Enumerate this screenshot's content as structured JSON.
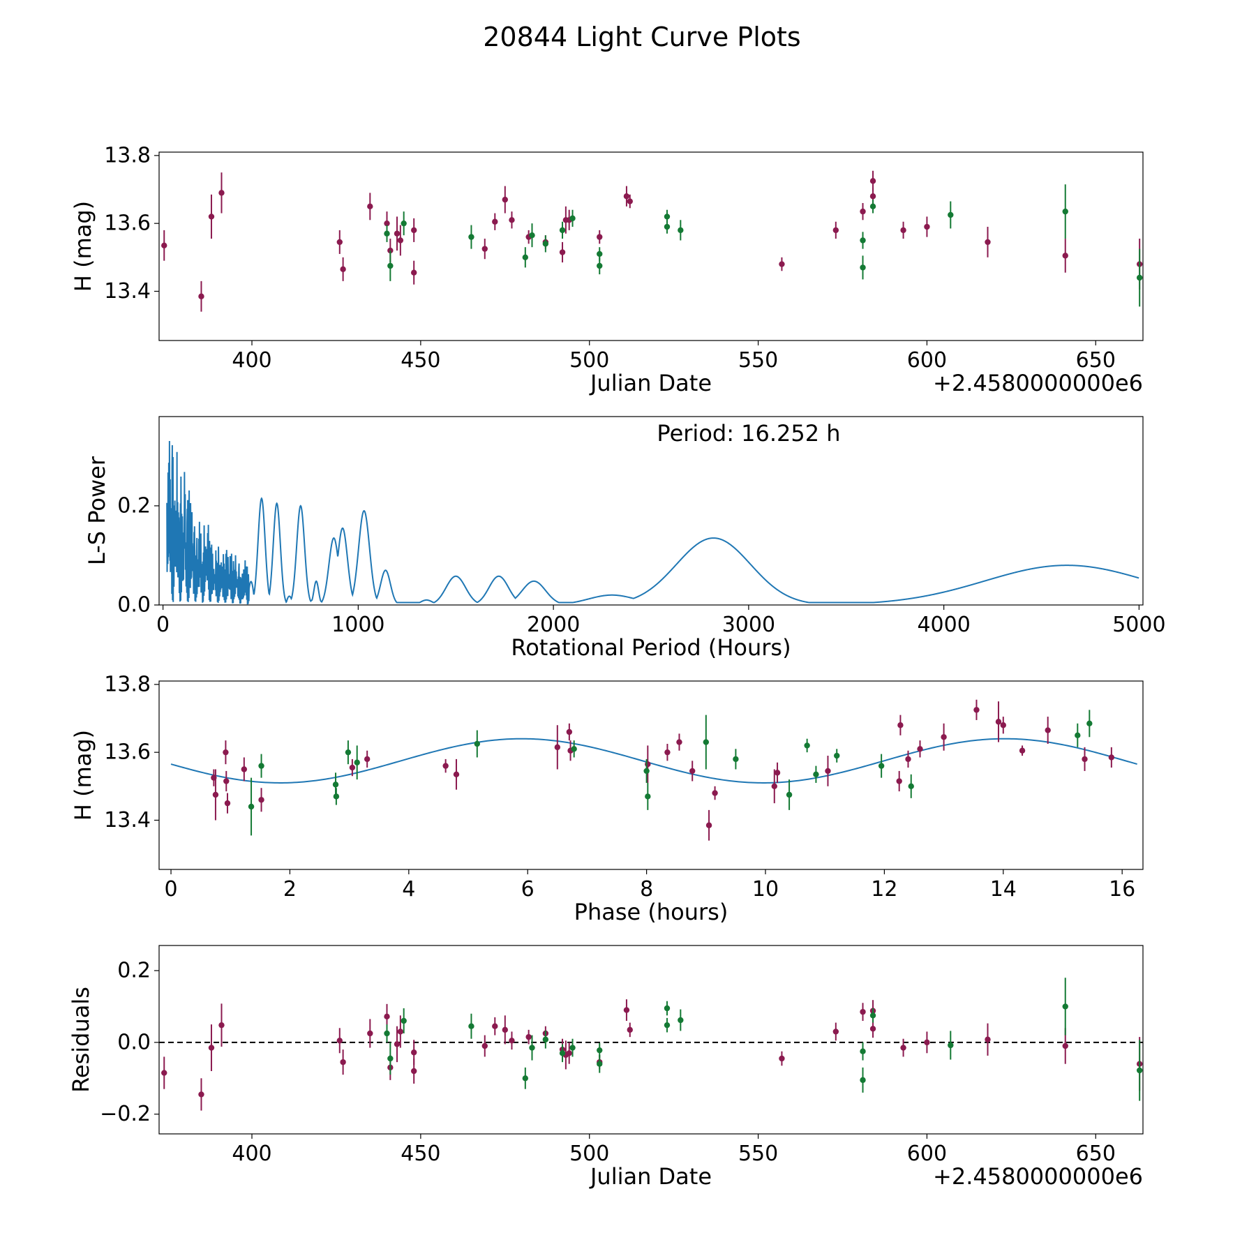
{
  "title": "20844 Light Curve Plots",
  "colors": {
    "red": "#8b1a4f",
    "green": "#147a34",
    "line": "#1f77b4",
    "ref": "#000000"
  },
  "chart_data": [
    {
      "id": "raw",
      "type": "scatter",
      "xlabel": "Julian Date",
      "ylabel": "H (mag)",
      "offset_label": "+2.4580000000e6",
      "xlim": [
        372.5,
        664.0
      ],
      "ylim": [
        13.255,
        13.81
      ],
      "xticks": [
        400,
        450,
        500,
        550,
        600,
        650
      ],
      "yticks": [
        13.4,
        13.6,
        13.8
      ],
      "ytick_decimals": 1,
      "series": [
        {
          "name": "red",
          "color": "#8b1a4f",
          "points": [
            [
              374.0,
              13.535,
              0.09
            ],
            [
              385.0,
              13.385,
              0.09
            ],
            [
              388.0,
              13.62,
              0.13
            ],
            [
              391.0,
              13.69,
              0.12
            ],
            [
              426.0,
              13.545,
              0.07
            ],
            [
              427.0,
              13.465,
              0.07
            ],
            [
              435.0,
              13.65,
              0.08
            ],
            [
              440.0,
              13.6,
              0.07
            ],
            [
              441.0,
              13.52,
              0.07
            ],
            [
              443.0,
              13.57,
              0.1
            ],
            [
              444.0,
              13.55,
              0.09
            ],
            [
              448.0,
              13.58,
              0.07
            ],
            [
              448.0,
              13.455,
              0.07
            ],
            [
              469.0,
              13.525,
              0.06
            ],
            [
              472.0,
              13.605,
              0.05
            ],
            [
              475.0,
              13.67,
              0.08
            ],
            [
              477.0,
              13.61,
              0.05
            ],
            [
              482.0,
              13.56,
              0.04
            ],
            [
              487.0,
              13.545,
              0.04
            ],
            [
              492.0,
              13.515,
              0.06
            ],
            [
              493.0,
              13.61,
              0.08
            ],
            [
              494.0,
              13.61,
              0.06
            ],
            [
              503.0,
              13.56,
              0.04
            ],
            [
              511.0,
              13.68,
              0.06
            ],
            [
              512.0,
              13.665,
              0.04
            ],
            [
              557.0,
              13.48,
              0.04
            ],
            [
              573.0,
              13.58,
              0.05
            ],
            [
              581.0,
              13.635,
              0.05
            ],
            [
              584.0,
              13.725,
              0.06
            ],
            [
              584.0,
              13.68,
              0.05
            ],
            [
              593.0,
              13.58,
              0.05
            ],
            [
              600.0,
              13.59,
              0.06
            ],
            [
              618.0,
              13.545,
              0.09
            ],
            [
              641.0,
              13.505,
              0.1
            ],
            [
              663.0,
              13.48,
              0.15
            ]
          ]
        },
        {
          "name": "green",
          "color": "#147a34",
          "points": [
            [
              440.0,
              13.57,
              0.05
            ],
            [
              441.0,
              13.475,
              0.09
            ],
            [
              445.0,
              13.6,
              0.07
            ],
            [
              465.0,
              13.56,
              0.07
            ],
            [
              481.0,
              13.5,
              0.06
            ],
            [
              483.0,
              13.565,
              0.07
            ],
            [
              487.0,
              13.54,
              0.05
            ],
            [
              492.0,
              13.58,
              0.05
            ],
            [
              495.0,
              13.615,
              0.05
            ],
            [
              503.0,
              13.51,
              0.04
            ],
            [
              503.0,
              13.475,
              0.05
            ],
            [
              523.0,
              13.62,
              0.04
            ],
            [
              523.0,
              13.59,
              0.04
            ],
            [
              527.0,
              13.58,
              0.06
            ],
            [
              581.0,
              13.55,
              0.05
            ],
            [
              581.0,
              13.47,
              0.07
            ],
            [
              584.0,
              13.65,
              0.04
            ],
            [
              607.0,
              13.625,
              0.08
            ],
            [
              641.0,
              13.635,
              0.16
            ],
            [
              663.0,
              13.44,
              0.17
            ]
          ]
        }
      ]
    },
    {
      "id": "periodogram",
      "type": "line",
      "xlabel": "Rotational Period (Hours)",
      "ylabel": "L-S Power",
      "annotation": "Period: 16.252 h",
      "xlim": [
        -20,
        5020
      ],
      "ylim": [
        0.0,
        0.38
      ],
      "xticks": [
        0,
        1000,
        2000,
        3000,
        4000,
        5000
      ],
      "yticks": [
        0.0,
        0.2
      ],
      "ytick_decimals": 1,
      "peaks": [
        [
          505,
          0.215,
          18
        ],
        [
          583,
          0.205,
          18
        ],
        [
          705,
          0.2,
          20
        ],
        [
          785,
          0.048,
          12
        ],
        [
          875,
          0.135,
          25
        ],
        [
          920,
          0.155,
          25
        ],
        [
          1030,
          0.19,
          28
        ],
        [
          1140,
          0.07,
          25
        ],
        [
          1350,
          0.01,
          30
        ],
        [
          1500,
          0.058,
          50
        ],
        [
          1720,
          0.058,
          50
        ],
        [
          1900,
          0.048,
          60
        ],
        [
          2300,
          0.02,
          120
        ],
        [
          2820,
          0.135,
          190
        ],
        [
          4630,
          0.08,
          420
        ]
      ],
      "noise_region": [
        20,
        440
      ],
      "baseline": 0.005
    },
    {
      "id": "phase",
      "type": "scatter",
      "xlabel": "Phase (hours)",
      "ylabel": "H (mag)",
      "xlim": [
        -0.2,
        16.35
      ],
      "ylim": [
        13.255,
        13.81
      ],
      "xticks": [
        0,
        2,
        4,
        6,
        8,
        10,
        12,
        14,
        16
      ],
      "yticks": [
        13.4,
        13.6,
        13.8
      ],
      "ytick_decimals": 1,
      "fit": {
        "mean": 13.575,
        "amplitude": 0.065,
        "period": 8.126,
        "phase_peak": 5.9
      },
      "series": [
        {
          "name": "red",
          "color": "#8b1a4f",
          "points": [
            [
              0.72,
              13.525,
              0.05
            ],
            [
              0.75,
              13.475,
              0.15
            ],
            [
              0.92,
              13.6,
              0.07
            ],
            [
              0.93,
              13.515,
              0.06
            ],
            [
              0.95,
              13.45,
              0.06
            ],
            [
              1.23,
              13.55,
              0.07
            ],
            [
              1.52,
              13.46,
              0.07
            ],
            [
              3.05,
              13.555,
              0.05
            ],
            [
              3.3,
              13.58,
              0.05
            ],
            [
              4.62,
              13.56,
              0.04
            ],
            [
              4.8,
              13.535,
              0.09
            ],
            [
              6.5,
              13.615,
              0.13
            ],
            [
              6.7,
              13.66,
              0.05
            ],
            [
              6.72,
              13.605,
              0.06
            ],
            [
              8.02,
              13.565,
              0.11
            ],
            [
              8.35,
              13.6,
              0.05
            ],
            [
              8.55,
              13.63,
              0.05
            ],
            [
              8.77,
              13.545,
              0.06
            ],
            [
              9.05,
              13.385,
              0.09
            ],
            [
              9.15,
              13.48,
              0.04
            ],
            [
              10.15,
              13.5,
              0.1
            ],
            [
              10.2,
              13.54,
              0.06
            ],
            [
              11.05,
              13.545,
              0.09
            ],
            [
              12.25,
              13.515,
              0.06
            ],
            [
              12.27,
              13.68,
              0.06
            ],
            [
              12.4,
              13.58,
              0.05
            ],
            [
              12.6,
              13.61,
              0.05
            ],
            [
              13.0,
              13.645,
              0.08
            ],
            [
              13.55,
              13.725,
              0.06
            ],
            [
              13.92,
              13.69,
              0.12
            ],
            [
              14.0,
              13.68,
              0.05
            ],
            [
              14.32,
              13.605,
              0.03
            ],
            [
              14.75,
              13.665,
              0.08
            ],
            [
              15.37,
              13.58,
              0.07
            ],
            [
              15.82,
              13.585,
              0.06
            ]
          ]
        },
        {
          "name": "green",
          "color": "#147a34",
          "points": [
            [
              1.35,
              13.44,
              0.17
            ],
            [
              1.52,
              13.56,
              0.07
            ],
            [
              2.77,
              13.505,
              0.07
            ],
            [
              2.78,
              13.47,
              0.05
            ],
            [
              2.98,
              13.6,
              0.07
            ],
            [
              3.13,
              13.57,
              0.1
            ],
            [
              5.15,
              13.625,
              0.08
            ],
            [
              6.78,
              13.61,
              0.05
            ],
            [
              8.0,
              13.545,
              0.07
            ],
            [
              8.02,
              13.47,
              0.08
            ],
            [
              9.0,
              13.63,
              0.16
            ],
            [
              9.5,
              13.58,
              0.06
            ],
            [
              10.4,
              13.475,
              0.09
            ],
            [
              10.7,
              13.62,
              0.04
            ],
            [
              10.85,
              13.535,
              0.05
            ],
            [
              11.2,
              13.59,
              0.04
            ],
            [
              11.95,
              13.56,
              0.07
            ],
            [
              12.45,
              13.5,
              0.07
            ],
            [
              15.25,
              13.65,
              0.07
            ],
            [
              15.45,
              13.685,
              0.08
            ]
          ]
        }
      ]
    },
    {
      "id": "residuals",
      "type": "scatter",
      "xlabel": "Julian Date",
      "ylabel": "Residuals",
      "offset_label": "+2.4580000000e6",
      "xlim": [
        372.5,
        664.0
      ],
      "ylim": [
        -0.255,
        0.27
      ],
      "xticks": [
        400,
        450,
        500,
        550,
        600,
        650
      ],
      "yticks": [
        -0.2,
        0.0,
        0.2
      ],
      "ytick_decimals": 1,
      "reference_line": 0.0,
      "series": [
        {
          "name": "red",
          "color": "#8b1a4f",
          "points": [
            [
              374.0,
              -0.085,
              0.09
            ],
            [
              385.0,
              -0.145,
              0.09
            ],
            [
              388.0,
              -0.015,
              0.13
            ],
            [
              391.0,
              0.048,
              0.12
            ],
            [
              426.0,
              0.005,
              0.07
            ],
            [
              427.0,
              -0.055,
              0.07
            ],
            [
              435.0,
              0.025,
              0.08
            ],
            [
              440.0,
              0.072,
              0.07
            ],
            [
              441.0,
              -0.07,
              0.07
            ],
            [
              443.0,
              -0.005,
              0.1
            ],
            [
              444.0,
              0.03,
              0.09
            ],
            [
              448.0,
              -0.028,
              0.07
            ],
            [
              448.0,
              -0.08,
              0.07
            ],
            [
              469.0,
              -0.01,
              0.06
            ],
            [
              472.0,
              0.045,
              0.05
            ],
            [
              475.0,
              0.035,
              0.08
            ],
            [
              477.0,
              0.005,
              0.05
            ],
            [
              482.0,
              0.015,
              0.04
            ],
            [
              487.0,
              0.025,
              0.04
            ],
            [
              492.0,
              -0.02,
              0.06
            ],
            [
              493.0,
              -0.035,
              0.08
            ],
            [
              494.0,
              -0.03,
              0.06
            ],
            [
              503.0,
              -0.055,
              0.04
            ],
            [
              511.0,
              0.09,
              0.06
            ],
            [
              512.0,
              0.035,
              0.04
            ],
            [
              557.0,
              -0.045,
              0.04
            ],
            [
              573.0,
              0.03,
              0.05
            ],
            [
              581.0,
              0.085,
              0.05
            ],
            [
              584.0,
              0.088,
              0.06
            ],
            [
              584.0,
              0.038,
              0.05
            ],
            [
              593.0,
              -0.015,
              0.05
            ],
            [
              600.0,
              0.0,
              0.06
            ],
            [
              618.0,
              0.008,
              0.09
            ],
            [
              641.0,
              -0.01,
              0.1
            ],
            [
              663.0,
              -0.06,
              0.15
            ]
          ]
        },
        {
          "name": "green",
          "color": "#147a34",
          "points": [
            [
              440.0,
              0.025,
              0.05
            ],
            [
              441.0,
              -0.045,
              0.09
            ],
            [
              445.0,
              0.06,
              0.07
            ],
            [
              465.0,
              0.045,
              0.07
            ],
            [
              481.0,
              -0.1,
              0.06
            ],
            [
              483.0,
              -0.015,
              0.07
            ],
            [
              487.0,
              0.008,
              0.05
            ],
            [
              492.0,
              -0.03,
              0.05
            ],
            [
              495.0,
              -0.015,
              0.05
            ],
            [
              503.0,
              -0.022,
              0.04
            ],
            [
              503.0,
              -0.06,
              0.05
            ],
            [
              523.0,
              0.095,
              0.04
            ],
            [
              523.0,
              0.048,
              0.04
            ],
            [
              527.0,
              0.062,
              0.06
            ],
            [
              581.0,
              -0.025,
              0.05
            ],
            [
              581.0,
              -0.105,
              0.07
            ],
            [
              584.0,
              0.075,
              0.04
            ],
            [
              607.0,
              -0.008,
              0.08
            ],
            [
              641.0,
              0.1,
              0.16
            ],
            [
              663.0,
              -0.078,
              0.17
            ]
          ]
        }
      ]
    }
  ]
}
